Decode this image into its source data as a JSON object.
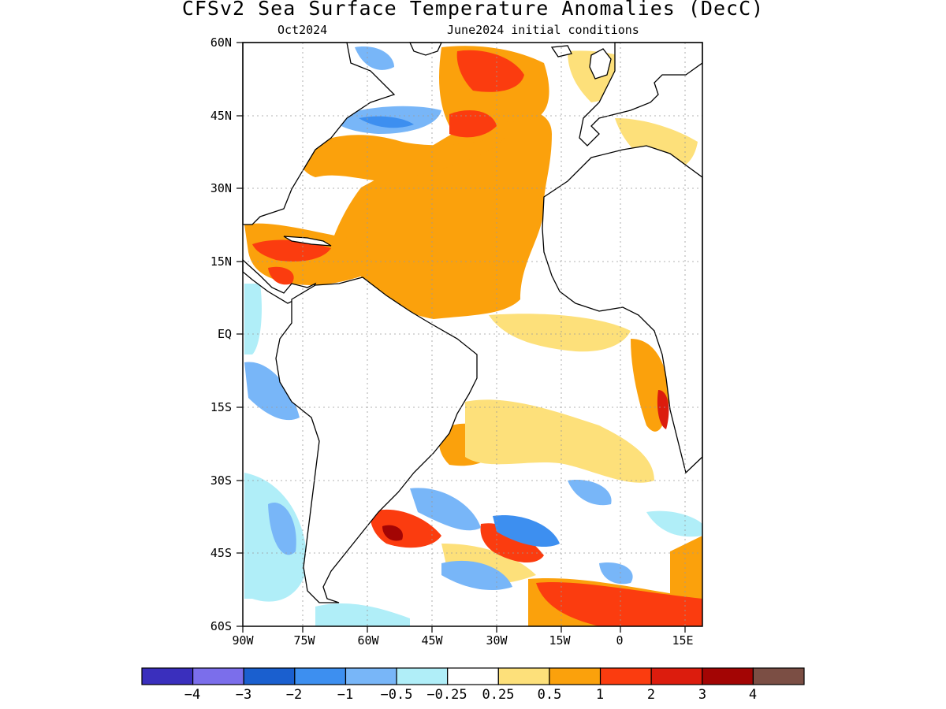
{
  "title": "CFSv2 Sea Surface Temperature Anomalies (DecC)",
  "subtitle_left": "Oct2024",
  "subtitle_right": "June2024 initial conditions",
  "map": {
    "lon_range": [
      -90,
      20
    ],
    "lat_range": [
      -60,
      60
    ],
    "grid": true,
    "lat_labels": [
      "60N",
      "45N",
      "30N",
      "15N",
      "EQ",
      "15S",
      "30S",
      "45S",
      "60S"
    ],
    "lon_labels": [
      "90W",
      "75W",
      "60W",
      "45W",
      "30W",
      "15W",
      "0",
      "15E"
    ]
  },
  "colorbar": {
    "colors": [
      "#3a2fbd",
      "#7b6eeb",
      "#1a5fcf",
      "#3d8ff0",
      "#78b6f8",
      "#b0eef8",
      "#ffffff",
      "#fde07a",
      "#fba10c",
      "#fb3c0f",
      "#dc1c0d",
      "#a30504",
      "#7b4e44"
    ],
    "labels": [
      "−4",
      "−3",
      "−2",
      "−1",
      "−0.5",
      "−0.25",
      "0.25",
      "0.5",
      "1",
      "2",
      "3",
      "4"
    ]
  }
}
